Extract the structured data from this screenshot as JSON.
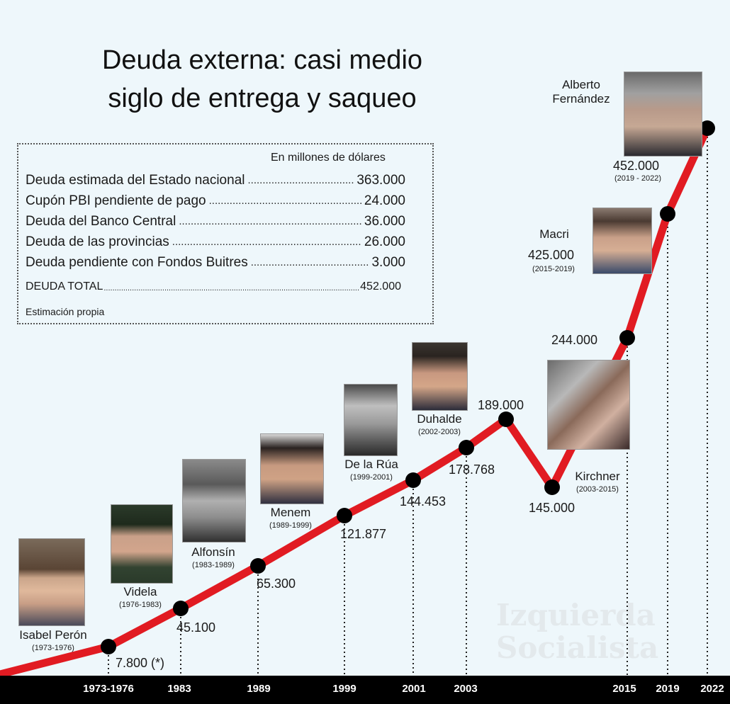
{
  "title_line1": "Deuda externa: casi medio",
  "title_line2": "siglo de entrega y saqueo",
  "box": {
    "unit": "En millones de dólares",
    "rows": [
      {
        "label": "Deuda estimada del Estado nacional",
        "value": "363.000"
      },
      {
        "label": "Cupón PBI pendiente de pago",
        "value": "24.000"
      },
      {
        "label": "Deuda del Banco Central",
        "value": "36.000"
      },
      {
        "label": "Deuda de las provincias",
        "value": "26.000"
      },
      {
        "label": "Deuda pendiente con Fondos Buitres",
        "value": "3.000"
      }
    ],
    "total": {
      "label": "DEUDA TOTAL",
      "value": "452.000"
    },
    "source": "Estimación propia"
  },
  "watermark": {
    "line1": "Izquierda",
    "line2": "Socialista"
  },
  "colors": {
    "line": "#e11b22",
    "point": "#000000",
    "background": "#eef7fb"
  },
  "people": [
    {
      "name": "Isabel Perón",
      "years": "(1973-1976)",
      "icon": "portrait-icon"
    },
    {
      "name": "Videla",
      "years": "(1976-1983)",
      "icon": "portrait-icon"
    },
    {
      "name": "Alfonsín",
      "years": "(1983-1989)",
      "icon": "portrait-icon"
    },
    {
      "name": "Menem",
      "years": "(1989-1999)",
      "icon": "portrait-icon"
    },
    {
      "name": "De la Rúa",
      "years": "(1999-2001)",
      "icon": "portrait-icon"
    },
    {
      "name": "Duhalde",
      "years": "(2002-2003)",
      "icon": "portrait-icon"
    },
    {
      "name": "Kirchner",
      "years": "(2003-2015)",
      "icon": "portrait-icon"
    },
    {
      "name": "Macri",
      "years": "(2015-2019)",
      "icon": "portrait-icon"
    },
    {
      "name": "Alberto Fernández",
      "name_line1": "Alberto",
      "name_line2": "Fernández",
      "years": "(2019 - 2022)",
      "icon": "portrait-icon"
    }
  ],
  "chart_data": {
    "type": "line",
    "title": "Deuda externa: casi medio siglo de entrega y saqueo",
    "ylabel": "",
    "xlabel": "",
    "x_tick_labels": [
      "1973-1976",
      "1983",
      "1989",
      "1999",
      "2001",
      "2003",
      "2015",
      "2019",
      "2022"
    ],
    "points": [
      {
        "x": "1976",
        "value": 7800,
        "label": "7.800 (*)"
      },
      {
        "x": "1983",
        "value": 45100,
        "label": "45.100"
      },
      {
        "x": "1989",
        "value": 65300,
        "label": "65.300"
      },
      {
        "x": "1999",
        "value": 121877,
        "label": "121.877"
      },
      {
        "x": "2001",
        "value": 144453,
        "label": "144.453"
      },
      {
        "x": "2003",
        "value": 178768,
        "label": "178.768"
      },
      {
        "x": "",
        "value": 189000,
        "label": "189.000"
      },
      {
        "x": "",
        "value": 145000,
        "label": "145.000"
      },
      {
        "x": "2015",
        "value": 244000,
        "label": "244.000"
      },
      {
        "x": "2019",
        "value": 425000,
        "label": "425.000"
      },
      {
        "x": "2022",
        "value": 452000,
        "label": "452.000"
      }
    ],
    "y_range": [
      0,
      460000
    ],
    "grid": false,
    "legend": "none"
  }
}
